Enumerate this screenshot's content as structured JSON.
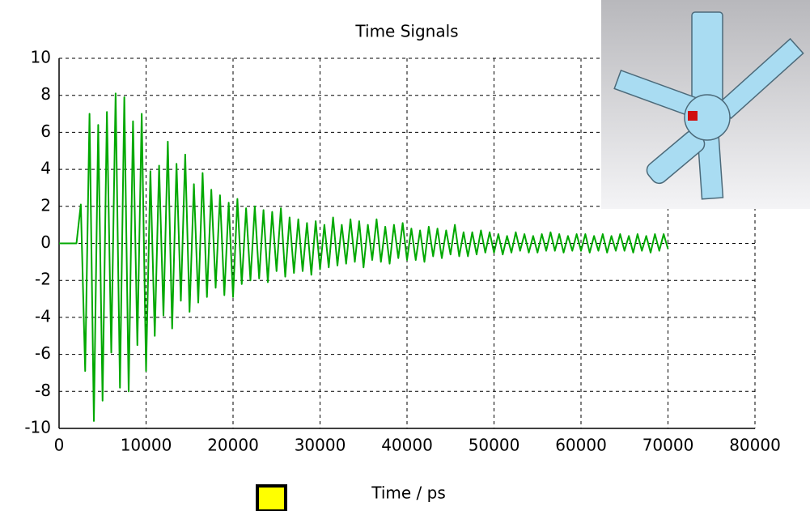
{
  "chart_data": {
    "type": "line",
    "title": "Time Signals",
    "x_label": "Time / ps",
    "x": [
      0,
      500,
      1000,
      1500,
      2000,
      2500,
      3000,
      3500,
      4000,
      4500,
      5000,
      5500,
      6000,
      6500,
      7000,
      7500,
      8000,
      8500,
      9000,
      9500,
      10000,
      10500,
      11000,
      11500,
      12000,
      12500,
      13000,
      13500,
      14000,
      14500,
      15000,
      15500,
      16000,
      16500,
      17000,
      17500,
      18000,
      18500,
      19000,
      19500,
      20000,
      20500,
      21000,
      21500,
      22000,
      22500,
      23000,
      23500,
      24000,
      24500,
      25000,
      25500,
      26000,
      26500,
      27000,
      27500,
      28000,
      28500,
      29000,
      29500,
      30000,
      30500,
      31000,
      31500,
      32000,
      32500,
      33000,
      33500,
      34000,
      34500,
      35000,
      35500,
      36000,
      36500,
      37000,
      37500,
      38000,
      38500,
      39000,
      39500,
      40000,
      40500,
      41000,
      41500,
      42000,
      42500,
      43000,
      43500,
      44000,
      44500,
      45000,
      45500,
      46000,
      46500,
      47000,
      47500,
      48000,
      48500,
      49000,
      49500,
      50000,
      50500,
      51000,
      51500,
      52000,
      52500,
      53000,
      53500,
      54000,
      54500,
      55000,
      55500,
      56000,
      56500,
      57000,
      57500,
      58000,
      58500,
      59000,
      59500,
      60000,
      60500,
      61000,
      61500,
      62000,
      62500,
      63000,
      63500,
      64000,
      64500,
      65000,
      65500,
      66000,
      66500,
      67000,
      67500,
      68000,
      68500,
      69000,
      69500,
      70000
    ],
    "series": [
      {
        "color": "#00a800",
        "values": [
          0,
          0,
          0,
          0,
          0,
          2.1,
          -6.9,
          7.0,
          -9.6,
          6.4,
          -8.5,
          7.1,
          -5.9,
          8.1,
          -7.8,
          7.9,
          -8.0,
          6.6,
          -5.5,
          7.0,
          -6.9,
          3.9,
          -5.0,
          4.2,
          -3.9,
          5.5,
          -4.6,
          4.3,
          -3.1,
          4.8,
          -3.7,
          3.2,
          -3.2,
          3.8,
          -2.9,
          2.9,
          -2.4,
          2.6,
          -2.8,
          2.2,
          -2.9,
          2.4,
          -2.2,
          1.9,
          -2.0,
          2.0,
          -1.9,
          1.8,
          -2.1,
          1.7,
          -1.5,
          1.9,
          -1.8,
          1.4,
          -1.6,
          1.3,
          -1.5,
          1.1,
          -1.7,
          1.2,
          -1.4,
          1.0,
          -1.3,
          1.4,
          -1.2,
          1.0,
          -1.1,
          1.3,
          -1.0,
          1.2,
          -1.3,
          1.0,
          -0.9,
          1.3,
          -1.0,
          0.9,
          -1.1,
          1.0,
          -0.8,
          1.1,
          -0.9,
          0.8,
          -0.9,
          0.7,
          -1.0,
          0.9,
          -0.7,
          0.8,
          -0.8,
          0.7,
          -0.6,
          1.0,
          -0.7,
          0.6,
          -0.7,
          0.6,
          -0.6,
          0.7,
          -0.5,
          0.6,
          -0.5,
          0.5,
          -0.6,
          0.4,
          -0.5,
          0.6,
          -0.4,
          0.5,
          -0.5,
          0.4,
          -0.5,
          0.5,
          -0.4,
          0.6,
          -0.4,
          0.5,
          -0.5,
          0.4,
          -0.4,
          0.5,
          -0.4,
          0.5,
          -0.5,
          0.4,
          -0.4,
          0.5,
          -0.5,
          0.4,
          -0.4,
          0.5,
          -0.4,
          0.4,
          -0.5,
          0.5,
          -0.4,
          0.4,
          -0.5,
          0.5,
          -0.4,
          0.5,
          -0.3
        ]
      }
    ],
    "xlim": [
      0,
      80000
    ],
    "xticks": [
      0,
      10000,
      20000,
      30000,
      40000,
      50000,
      60000,
      70000,
      80000
    ],
    "ylim": [
      -10,
      10
    ],
    "yticks": [
      -10,
      -8,
      -6,
      -4,
      -2,
      0,
      2,
      4,
      6,
      8,
      10
    ],
    "grid": true
  }
}
